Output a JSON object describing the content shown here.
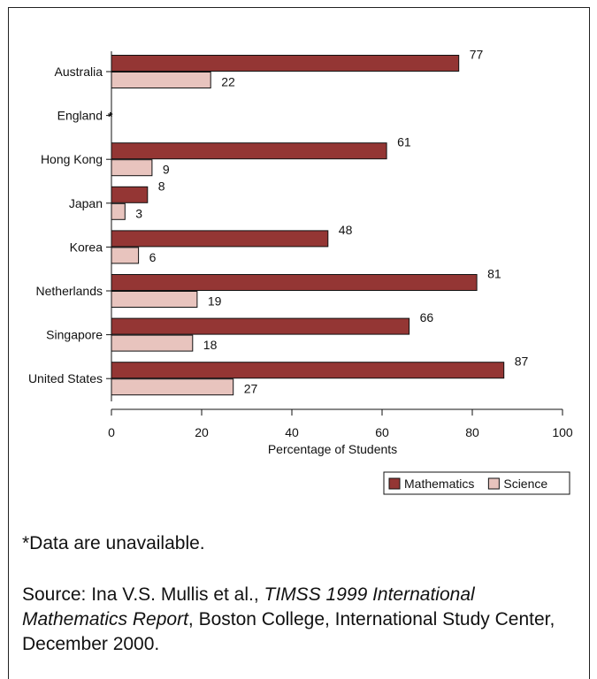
{
  "chart_data": {
    "type": "bar",
    "orientation": "horizontal",
    "categories": [
      "Australia",
      "England",
      "Hong Kong",
      "Japan",
      "Korea",
      "Netherlands",
      "Singapore",
      "United States"
    ],
    "series": [
      {
        "name": "Mathematics",
        "color": "#943634",
        "values": [
          77,
          null,
          61,
          8,
          48,
          81,
          66,
          87
        ]
      },
      {
        "name": "Science",
        "color": "#e8c4be",
        "values": [
          22,
          null,
          9,
          3,
          6,
          19,
          18,
          27
        ]
      }
    ],
    "missing_marker": "*",
    "xlabel": "Percentage of Students",
    "xlim": [
      0,
      100
    ],
    "xticks": [
      0,
      20,
      40,
      60,
      80,
      100
    ],
    "legend_position": "bottom-right"
  },
  "footnote": "*Data are unavailable.",
  "source": {
    "prefix": "Source: Ina V.S. Mullis et al., ",
    "title": "TIMSS 1999 International Mathematics Report",
    "suffix": ", Boston College, International Study Center, December 2000."
  }
}
